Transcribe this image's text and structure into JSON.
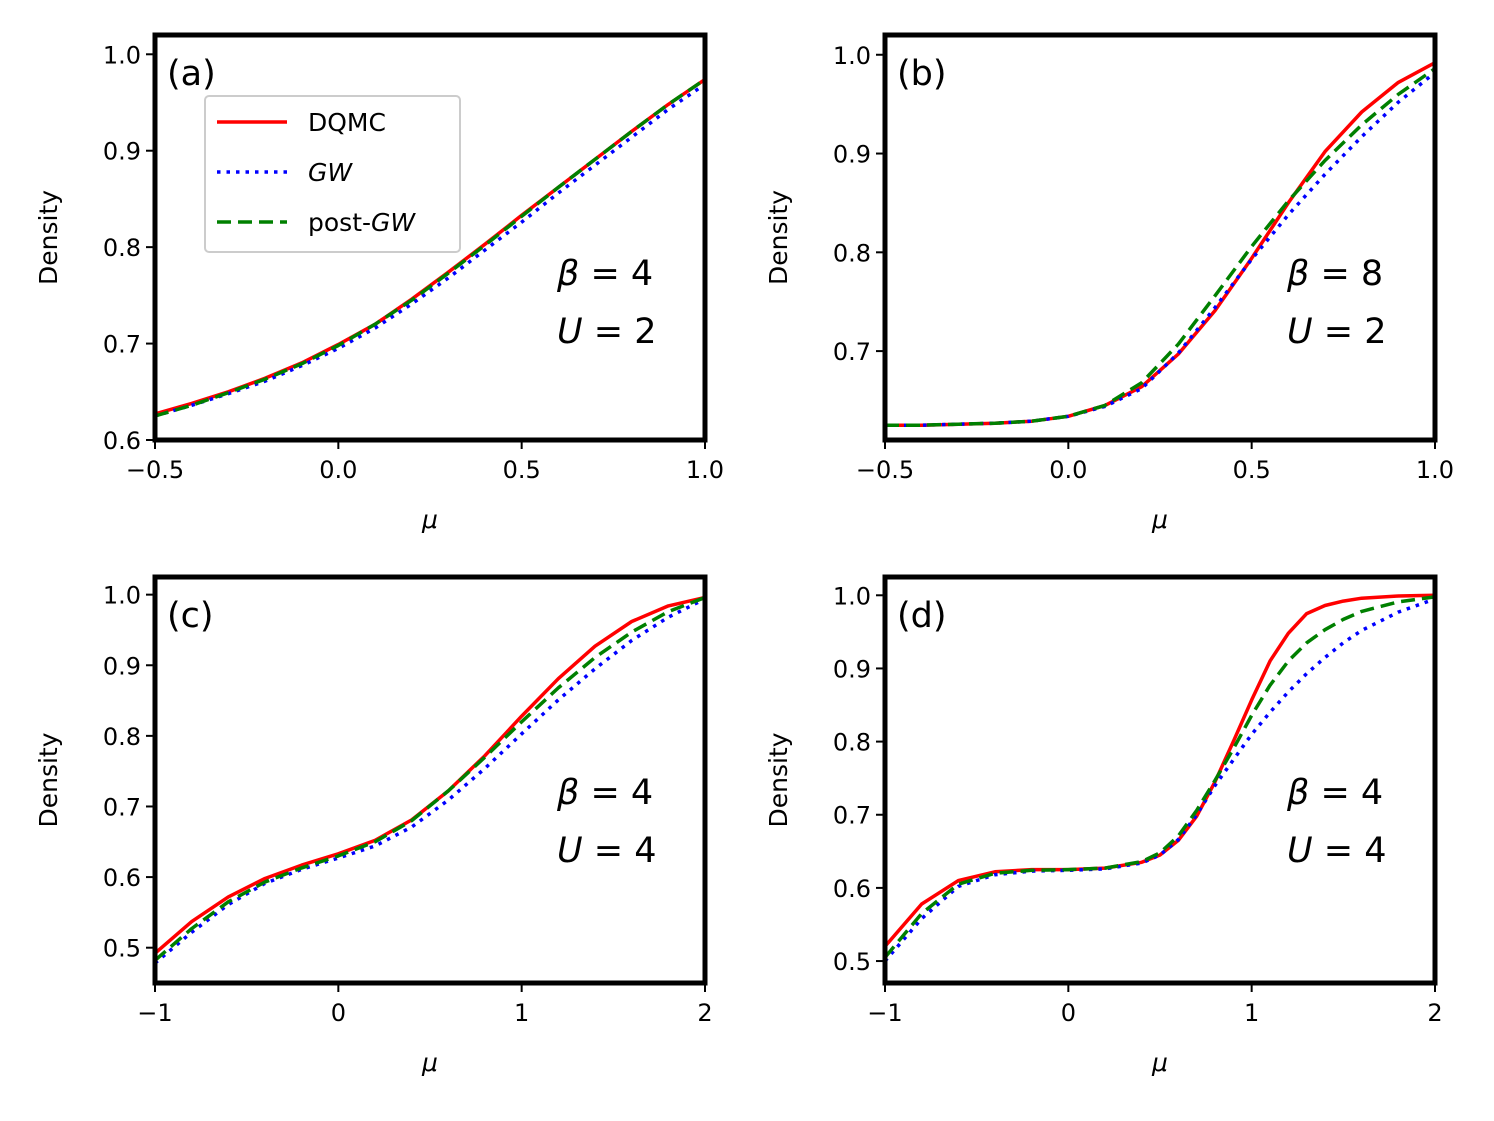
{
  "figure": {
    "legend": {
      "entries": [
        {
          "label_parts": [
            {
              "t": "DQMC",
              "i": false
            }
          ],
          "color": "#ff0000",
          "style": "solid"
        },
        {
          "label_parts": [
            {
              "t": "GW",
              "i": true
            }
          ],
          "color": "#0000ff",
          "style": "dotted"
        },
        {
          "label_parts": [
            {
              "t": "post-",
              "i": false
            },
            {
              "t": "GW",
              "i": true
            }
          ],
          "color": "#008000",
          "style": "dashed"
        }
      ],
      "placement": "upper-left of panel (a)"
    }
  },
  "chart_data": [
    {
      "type": "line",
      "panel_label": "(a)",
      "xlabel": "μ",
      "ylabel": "Density",
      "xlim": [
        -0.5,
        1.0
      ],
      "ylim": [
        0.6,
        1.02
      ],
      "xticks": [
        -0.5,
        0.0,
        0.5,
        1.0
      ],
      "xtick_labels": [
        "−0.5",
        "0.0",
        "0.5",
        "1.0"
      ],
      "yticks": [
        0.6,
        0.7,
        0.8,
        0.9,
        1.0
      ],
      "ytick_labels": [
        "0.6",
        "0.7",
        "0.8",
        "0.9",
        "1.0"
      ],
      "annotation": {
        "beta": "β = 4",
        "U": "U = 2"
      },
      "grid": false,
      "x": [
        -0.5,
        -0.4,
        -0.3,
        -0.2,
        -0.1,
        0.0,
        0.1,
        0.2,
        0.3,
        0.4,
        0.5,
        0.6,
        0.7,
        0.8,
        0.9,
        1.0
      ],
      "series": [
        {
          "name": "DQMC",
          "values": [
            0.627,
            0.638,
            0.65,
            0.664,
            0.68,
            0.699,
            0.72,
            0.746,
            0.774,
            0.803,
            0.833,
            0.862,
            0.891,
            0.92,
            0.948,
            0.974
          ]
        },
        {
          "name": "GW",
          "values": [
            0.625,
            0.636,
            0.648,
            0.661,
            0.677,
            0.695,
            0.716,
            0.741,
            0.768,
            0.797,
            0.826,
            0.856,
            0.885,
            0.914,
            0.943,
            0.969
          ]
        },
        {
          "name": "post-GW",
          "values": [
            0.625,
            0.636,
            0.649,
            0.663,
            0.679,
            0.698,
            0.72,
            0.745,
            0.773,
            0.802,
            0.832,
            0.862,
            0.891,
            0.92,
            0.948,
            0.974
          ]
        }
      ]
    },
    {
      "type": "line",
      "panel_label": "(b)",
      "xlabel": "μ",
      "ylabel": "Density",
      "xlim": [
        -0.5,
        1.0
      ],
      "ylim": [
        0.61,
        1.02
      ],
      "xticks": [
        -0.5,
        0.0,
        0.5,
        1.0
      ],
      "xtick_labels": [
        "−0.5",
        "0.0",
        "0.5",
        "1.0"
      ],
      "yticks": [
        0.7,
        0.8,
        0.9,
        1.0
      ],
      "ytick_labels": [
        "0.7",
        "0.8",
        "0.9",
        "1.0"
      ],
      "annotation": {
        "beta": "β = 8",
        "U": "U = 2"
      },
      "grid": false,
      "x": [
        -0.5,
        -0.4,
        -0.3,
        -0.2,
        -0.1,
        0.0,
        0.1,
        0.2,
        0.3,
        0.4,
        0.5,
        0.6,
        0.7,
        0.8,
        0.9,
        1.0
      ],
      "series": [
        {
          "name": "DQMC",
          "values": [
            0.625,
            0.625,
            0.626,
            0.627,
            0.629,
            0.634,
            0.645,
            0.664,
            0.697,
            0.741,
            0.794,
            0.85,
            0.902,
            0.942,
            0.972,
            0.992
          ]
        },
        {
          "name": "GW",
          "values": [
            0.625,
            0.625,
            0.626,
            0.627,
            0.629,
            0.634,
            0.644,
            0.662,
            0.698,
            0.744,
            0.793,
            0.838,
            0.879,
            0.917,
            0.952,
            0.982
          ]
        },
        {
          "name": "post-GW",
          "values": [
            0.625,
            0.625,
            0.626,
            0.627,
            0.629,
            0.634,
            0.645,
            0.668,
            0.707,
            0.756,
            0.806,
            0.852,
            0.893,
            0.929,
            0.96,
            0.986
          ]
        }
      ]
    },
    {
      "type": "line",
      "panel_label": "(c)",
      "xlabel": "μ",
      "ylabel": "Density",
      "xlim": [
        -1,
        2
      ],
      "ylim": [
        0.45,
        1.025
      ],
      "xticks": [
        -1,
        0,
        1,
        2
      ],
      "xtick_labels": [
        "−1",
        "0",
        "1",
        "2"
      ],
      "yticks": [
        0.5,
        0.6,
        0.7,
        0.8,
        0.9,
        1.0
      ],
      "ytick_labels": [
        "0.5",
        "0.6",
        "0.7",
        "0.8",
        "0.9",
        "1.0"
      ],
      "annotation": {
        "beta": "β = 4",
        "U": "U = 4"
      },
      "grid": false,
      "x": [
        -1.0,
        -0.8,
        -0.6,
        -0.4,
        -0.2,
        0.0,
        0.2,
        0.4,
        0.6,
        0.8,
        1.0,
        1.2,
        1.4,
        1.6,
        1.8,
        2.0
      ],
      "series": [
        {
          "name": "DQMC",
          "values": [
            0.492,
            0.537,
            0.572,
            0.598,
            0.617,
            0.633,
            0.652,
            0.681,
            0.722,
            0.772,
            0.828,
            0.881,
            0.927,
            0.962,
            0.984,
            0.996
          ]
        },
        {
          "name": "GW",
          "values": [
            0.478,
            0.522,
            0.561,
            0.591,
            0.611,
            0.627,
            0.644,
            0.671,
            0.709,
            0.754,
            0.803,
            0.851,
            0.895,
            0.935,
            0.968,
            0.994
          ]
        },
        {
          "name": "post-GW",
          "values": [
            0.482,
            0.527,
            0.565,
            0.593,
            0.613,
            0.63,
            0.65,
            0.68,
            0.722,
            0.77,
            0.82,
            0.868,
            0.911,
            0.947,
            0.976,
            0.996
          ]
        }
      ]
    },
    {
      "type": "line",
      "panel_label": "(d)",
      "xlabel": "μ",
      "ylabel": "Density",
      "xlim": [
        -1,
        2
      ],
      "ylim": [
        0.47,
        1.025
      ],
      "xticks": [
        -1,
        0,
        1,
        2
      ],
      "xtick_labels": [
        "−1",
        "0",
        "1",
        "2"
      ],
      "yticks": [
        0.5,
        0.6,
        0.7,
        0.8,
        0.9,
        1.0
      ],
      "ytick_labels": [
        "0.5",
        "0.6",
        "0.7",
        "0.8",
        "0.9",
        "1.0"
      ],
      "annotation": {
        "beta": "β = 4",
        "U": "U = 4"
      },
      "grid": false,
      "x": [
        -1.0,
        -0.8,
        -0.6,
        -0.4,
        -0.2,
        0.0,
        0.2,
        0.4,
        0.5,
        0.6,
        0.7,
        0.8,
        0.9,
        1.0,
        1.1,
        1.2,
        1.3,
        1.4,
        1.5,
        1.6,
        1.8,
        2.0
      ],
      "series": [
        {
          "name": "DQMC",
          "values": [
            0.52,
            0.578,
            0.61,
            0.622,
            0.625,
            0.625,
            0.627,
            0.635,
            0.645,
            0.665,
            0.698,
            0.745,
            0.8,
            0.857,
            0.91,
            0.948,
            0.975,
            0.986,
            0.992,
            0.996,
            0.999,
            1.0
          ]
        },
        {
          "name": "GW",
          "values": [
            0.5,
            0.558,
            0.602,
            0.618,
            0.623,
            0.624,
            0.626,
            0.634,
            0.645,
            0.666,
            0.7,
            0.74,
            0.775,
            0.81,
            0.84,
            0.868,
            0.893,
            0.915,
            0.935,
            0.952,
            0.977,
            0.995
          ]
        },
        {
          "name": "post-GW",
          "values": [
            0.505,
            0.565,
            0.605,
            0.62,
            0.624,
            0.625,
            0.627,
            0.636,
            0.648,
            0.671,
            0.706,
            0.747,
            0.79,
            0.836,
            0.877,
            0.91,
            0.935,
            0.953,
            0.967,
            0.978,
            0.991,
            0.998
          ]
        }
      ]
    }
  ]
}
